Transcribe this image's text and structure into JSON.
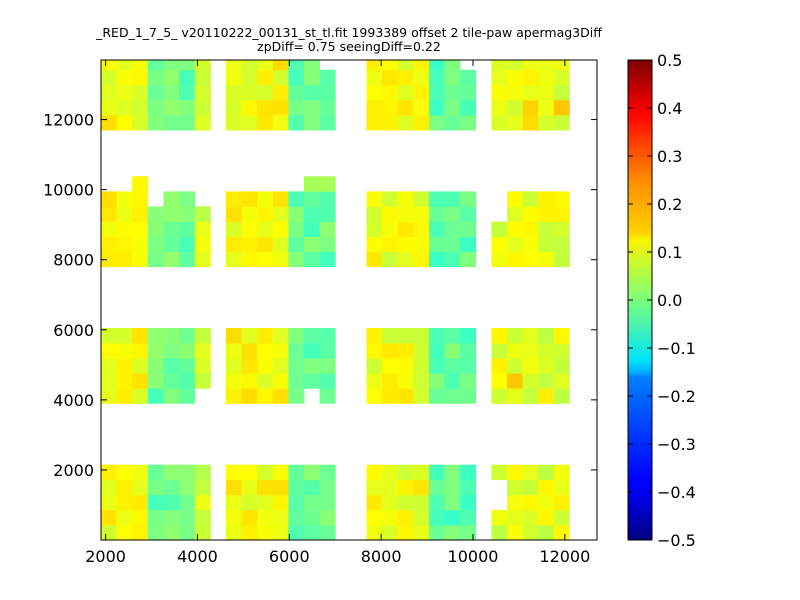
{
  "chart_data": {
    "type": "heatmap",
    "title": "_RED_1_7_5_ v20110222_00131_st_tl.fit 1993389 offset 2 tile-paw apermag3Diff",
    "subtitle": "zpDiff= 0.75 seeingDiff=0.22",
    "xlabel": "",
    "ylabel": "",
    "xlim": [
      1900,
      12700
    ],
    "ylim": [
      0,
      13700
    ],
    "x_ticks": [
      2000,
      4000,
      6000,
      8000,
      10000,
      12000
    ],
    "y_ticks": [
      2000,
      4000,
      6000,
      8000,
      10000,
      12000
    ],
    "colorbar": {
      "colormap": "jet",
      "vmin": -0.5,
      "vmax": 0.5,
      "ticks": [
        "0.5",
        "0.4",
        "0.3",
        "0.2",
        "0.1",
        "0.0",
        "−0.1",
        "−0.2",
        "−0.3",
        "−0.4",
        "−0.5"
      ],
      "tick_values": [
        0.5,
        0.4,
        0.3,
        0.2,
        0.1,
        0.0,
        -0.1,
        -0.2,
        -0.3,
        -0.4,
        -0.5
      ]
    },
    "cell_size": [
      340,
      430
    ],
    "detector_columns": [
      {
        "x0": 1900,
        "ncols": 3,
        "bias": 0.12
      },
      {
        "x0": 2920,
        "ncols": 3,
        "bias": -0.02
      },
      {
        "x0": 3940,
        "ncols": 1,
        "bias": 0.08
      },
      {
        "x0": 4620,
        "ncols": 4,
        "bias": 0.12
      },
      {
        "x0": 5980,
        "ncols": 3,
        "bias": -0.02
      },
      {
        "x0": 7680,
        "ncols": 4,
        "bias": 0.11
      },
      {
        "x0": 9040,
        "ncols": 3,
        "bias": -0.03
      },
      {
        "x0": 10400,
        "ncols": 5,
        "bias": 0.1
      }
    ],
    "detector_rows": [
      {
        "y0": 0,
        "nrows": 5
      },
      {
        "y0": 3900,
        "nrows": 5
      },
      {
        "y0": 7800,
        "nrows": 5
      },
      {
        "y0": 11700,
        "nrows": 5
      }
    ],
    "noise_amplitude": 0.04,
    "missing_cells": [
      [
        10400,
        0,
        2
      ],
      [
        10400,
        0,
        3
      ],
      [
        12080,
        3,
        2
      ],
      [
        12080,
        3,
        3
      ],
      [
        6660,
        3,
        4
      ],
      [
        9720,
        3,
        4
      ],
      [
        3940,
        1,
        0
      ],
      [
        6320,
        1,
        0
      ],
      [
        10400,
        2,
        3
      ],
      [
        10400,
        2,
        4
      ],
      [
        12080,
        2,
        4
      ],
      [
        2920,
        2,
        4
      ],
      [
        3940,
        2,
        4
      ],
      [
        12080,
        1,
        4
      ],
      [
        12080,
        0,
        1
      ],
      [
        12080,
        0,
        0
      ]
    ],
    "overrides": [
      {
        "cx": 10740,
        "row": 1,
        "sub": 1,
        "value": 0.18
      },
      {
        "cx": 11080,
        "row": 3,
        "sub": 0,
        "value": 0.16
      },
      {
        "cx": 11080,
        "row": 3,
        "sub": 1,
        "value": 0.17
      },
      {
        "cx": 11760,
        "row": 3,
        "sub": 1,
        "value": 0.18
      },
      {
        "cx": 12080,
        "row": 0,
        "sub": 4,
        "value": -0.03
      },
      {
        "cx": 12420,
        "row": 0,
        "sub": 4,
        "value": -0.05
      },
      {
        "cx": 12080,
        "row": 2,
        "sub": 3,
        "value": -0.02
      },
      {
        "cx": 12420,
        "row": 2,
        "sub": 0,
        "value": 0.04
      },
      {
        "cx": 9380,
        "row": 0,
        "sub": 1,
        "value": -0.07
      },
      {
        "cx": 9040,
        "row": 0,
        "sub": 2,
        "value": -0.05
      },
      {
        "cx": 8360,
        "row": 3,
        "sub": 1,
        "value": 0.15
      },
      {
        "cx": 8360,
        "row": 1,
        "sub": 0,
        "value": 0.15
      }
    ],
    "grid": false,
    "legend": "none"
  }
}
